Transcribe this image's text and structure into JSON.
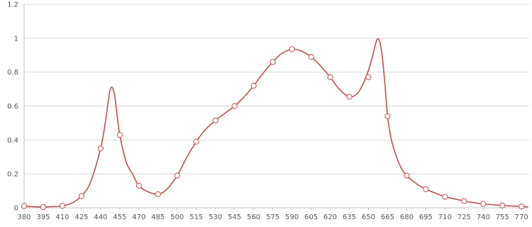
{
  "chart_data": {
    "type": "line",
    "title": "",
    "xlabel": "",
    "ylabel": "",
    "ylim": [
      0,
      1.2
    ],
    "yticks": [
      "0",
      "0.2",
      "0.4",
      "0.6",
      "0.8",
      "1",
      "1.2"
    ],
    "xticks": [
      "380",
      "395",
      "410",
      "425",
      "440",
      "455",
      "470",
      "485",
      "500",
      "515",
      "530",
      "545",
      "560",
      "575",
      "590",
      "605",
      "620",
      "635",
      "650",
      "665",
      "680",
      "695",
      "710",
      "725",
      "740",
      "755",
      "770"
    ],
    "grid": "horizontal",
    "legend": "none",
    "series_color": "#c0504d",
    "curve": [
      [
        380,
        0.01
      ],
      [
        395,
        0.005
      ],
      [
        410,
        0.012
      ],
      [
        418,
        0.03
      ],
      [
        425,
        0.07
      ],
      [
        432,
        0.15
      ],
      [
        440,
        0.35
      ],
      [
        444,
        0.52
      ],
      [
        447,
        0.68
      ],
      [
        449,
        0.71
      ],
      [
        451,
        0.66
      ],
      [
        453,
        0.54
      ],
      [
        455,
        0.43
      ],
      [
        460,
        0.27
      ],
      [
        465,
        0.2
      ],
      [
        470,
        0.13
      ],
      [
        477,
        0.095
      ],
      [
        485,
        0.08
      ],
      [
        492,
        0.11
      ],
      [
        500,
        0.19
      ],
      [
        507,
        0.29
      ],
      [
        515,
        0.39
      ],
      [
        522,
        0.46
      ],
      [
        530,
        0.515
      ],
      [
        537,
        0.555
      ],
      [
        545,
        0.6
      ],
      [
        552,
        0.65
      ],
      [
        560,
        0.72
      ],
      [
        567,
        0.79
      ],
      [
        575,
        0.86
      ],
      [
        582,
        0.91
      ],
      [
        590,
        0.935
      ],
      [
        597,
        0.925
      ],
      [
        605,
        0.89
      ],
      [
        612,
        0.84
      ],
      [
        620,
        0.77
      ],
      [
        627,
        0.7
      ],
      [
        635,
        0.655
      ],
      [
        642,
        0.68
      ],
      [
        648,
        0.77
      ],
      [
        652,
        0.86
      ],
      [
        655,
        0.95
      ],
      [
        657,
        0.995
      ],
      [
        659,
        0.975
      ],
      [
        661,
        0.88
      ],
      [
        663,
        0.72
      ],
      [
        665,
        0.54
      ],
      [
        668,
        0.4
      ],
      [
        672,
        0.3
      ],
      [
        676,
        0.23
      ],
      [
        680,
        0.19
      ],
      [
        688,
        0.14
      ],
      [
        695,
        0.11
      ],
      [
        703,
        0.085
      ],
      [
        710,
        0.065
      ],
      [
        718,
        0.052
      ],
      [
        725,
        0.04
      ],
      [
        733,
        0.03
      ],
      [
        740,
        0.023
      ],
      [
        748,
        0.018
      ],
      [
        755,
        0.014
      ],
      [
        762,
        0.011
      ],
      [
        770,
        0.008
      ],
      [
        775,
        0.006
      ]
    ],
    "markers": [
      [
        380,
        0.01
      ],
      [
        395,
        0.005
      ],
      [
        410,
        0.012
      ],
      [
        425,
        0.07
      ],
      [
        440,
        0.35
      ],
      [
        455,
        0.43
      ],
      [
        470,
        0.13
      ],
      [
        485,
        0.08
      ],
      [
        500,
        0.19
      ],
      [
        515,
        0.39
      ],
      [
        530,
        0.515
      ],
      [
        545,
        0.6
      ],
      [
        560,
        0.72
      ],
      [
        575,
        0.86
      ],
      [
        590,
        0.935
      ],
      [
        605,
        0.89
      ],
      [
        620,
        0.77
      ],
      [
        635,
        0.655
      ],
      [
        650,
        0.77
      ],
      [
        665,
        0.54
      ],
      [
        680,
        0.19
      ],
      [
        695,
        0.11
      ],
      [
        710,
        0.065
      ],
      [
        725,
        0.04
      ],
      [
        740,
        0.023
      ],
      [
        755,
        0.014
      ],
      [
        770,
        0.008
      ]
    ]
  }
}
